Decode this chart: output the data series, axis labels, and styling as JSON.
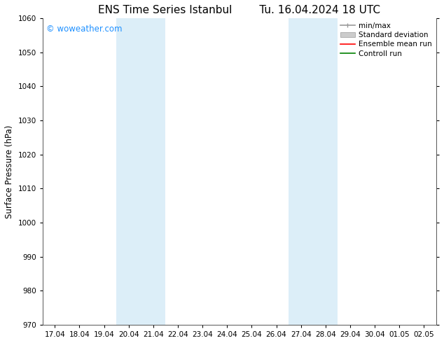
{
  "title_left": "ENS Time Series Istanbul",
  "title_right": "Tu. 16.04.2024 18 UTC",
  "ylabel": "Surface Pressure (hPa)",
  "ylim": [
    970,
    1060
  ],
  "yticks": [
    970,
    980,
    990,
    1000,
    1010,
    1020,
    1030,
    1040,
    1050,
    1060
  ],
  "xtick_labels": [
    "17.04",
    "18.04",
    "19.04",
    "20.04",
    "21.04",
    "22.04",
    "23.04",
    "24.04",
    "25.04",
    "26.04",
    "27.04",
    "28.04",
    "29.04",
    "30.04",
    "01.05",
    "02.05"
  ],
  "watermark": "© woweather.com",
  "watermark_color": "#1E90FF",
  "background_color": "#ffffff",
  "plot_bg_color": "#ffffff",
  "shaded_regions_idx": [
    3,
    5,
    10,
    12
  ],
  "shaded_color": "#dceef8",
  "legend_labels": [
    "min/max",
    "Standard deviation",
    "Ensemble mean run",
    "Controll run"
  ],
  "legend_line_colors": [
    "#999999",
    "#bbbbbb",
    "#ff0000",
    "#008000"
  ],
  "title_fontsize": 11,
  "tick_fontsize": 7.5,
  "label_fontsize": 8.5,
  "watermark_fontsize": 8.5,
  "legend_fontsize": 7.5
}
